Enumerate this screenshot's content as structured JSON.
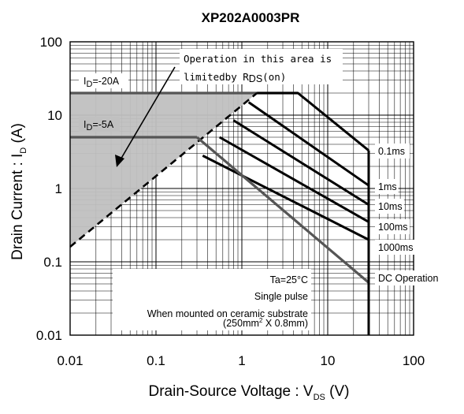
{
  "title": "XP202A0003PR",
  "chart_data": {
    "type": "line",
    "title": "XP202A0003PR",
    "xlabel": {
      "main": "Drain-Source Voltage : V",
      "sub": "DS",
      "unit": " (V)"
    },
    "ylabel": {
      "main": "Drain Current : I",
      "sub": "D",
      "unit": " (A)"
    },
    "x_scale": "log",
    "y_scale": "log",
    "xlim": [
      0.01,
      100
    ],
    "ylim": [
      0.01,
      100
    ],
    "grid": true,
    "x_ticks": [
      {
        "value": 0.01,
        "label": "0.01"
      },
      {
        "value": 0.1,
        "label": "0.1"
      },
      {
        "value": 1,
        "label": "1"
      },
      {
        "value": 10,
        "label": "10"
      },
      {
        "value": 100,
        "label": "100"
      }
    ],
    "y_ticks": [
      {
        "value": 100,
        "label": "100"
      },
      {
        "value": 10,
        "label": "10"
      },
      {
        "value": 1,
        "label": "1"
      },
      {
        "value": 0.1,
        "label": "0.1"
      },
      {
        "value": 0.01,
        "label": "0.01"
      }
    ],
    "limit_region": {
      "name": "limited by RDS(on)",
      "color": "#c0c0c0"
    },
    "series": [
      {
        "name": "ID=-20A",
        "kind": "current-limit",
        "color": "#555555",
        "points": [
          [
            0.01,
            20
          ],
          [
            4.5,
            20
          ]
        ]
      },
      {
        "name": "ID=-5A",
        "kind": "current-limit",
        "color": "#555555",
        "points": [
          [
            0.01,
            5
          ],
          [
            0.3,
            5
          ]
        ]
      },
      {
        "name": "RDS(on) limit",
        "kind": "dashed",
        "color": "#000000",
        "points": [
          [
            0.01,
            0.16
          ],
          [
            1.5,
            20
          ]
        ]
      },
      {
        "name": "0.1ms",
        "color": "#000000",
        "points": [
          [
            1.5,
            20
          ],
          [
            4.5,
            20
          ],
          [
            30,
            3.3
          ]
        ]
      },
      {
        "name": "1ms",
        "color": "#000000",
        "points": [
          [
            1.2,
            15
          ],
          [
            30,
            1.1
          ]
        ]
      },
      {
        "name": "10ms",
        "color": "#000000",
        "points": [
          [
            0.8,
            8.5
          ],
          [
            30,
            0.6
          ]
        ]
      },
      {
        "name": "100ms",
        "color": "#000000",
        "points": [
          [
            0.55,
            5
          ],
          [
            30,
            0.35
          ]
        ]
      },
      {
        "name": "1000ms",
        "color": "#000000",
        "points": [
          [
            0.35,
            2.8
          ],
          [
            30,
            0.2
          ]
        ]
      },
      {
        "name": "DC Operation",
        "kind": "dc",
        "color": "#555555",
        "points": [
          [
            0.3,
            5
          ],
          [
            30,
            0.052
          ]
        ]
      },
      {
        "name": "VDSS limit",
        "kind": "vertical",
        "color": "#000000",
        "points": [
          [
            30,
            3.3
          ],
          [
            30,
            0.01
          ]
        ]
      }
    ],
    "series_labels": [
      {
        "series": "0.1ms",
        "text": "0.1ms"
      },
      {
        "series": "1ms",
        "text": "1ms"
      },
      {
        "series": "10ms",
        "text": "10ms"
      },
      {
        "series": "100ms",
        "text": "100ms"
      },
      {
        "series": "1000ms",
        "text": "1000ms"
      },
      {
        "series": "DC Operation",
        "text": "DC Operation"
      }
    ],
    "annotations": {
      "id20": {
        "main": "I",
        "sub": "D",
        "rest": "=-20A"
      },
      "id5": {
        "main": "I",
        "sub": "D",
        "rest": "=-5A"
      },
      "limit_note": {
        "line1": "Operation in this area is",
        "line2_main": "limitedby R",
        "line2_sub": "DS",
        "line2_rest": "(on)"
      },
      "conditions": {
        "ta": "Ta=25°C",
        "pulse": "Single pulse",
        "mount": "When mounted on ceramic substrate",
        "size_a": "(250mm",
        "size_sup": "2",
        "size_b": " X 0.8mm)"
      }
    }
  }
}
